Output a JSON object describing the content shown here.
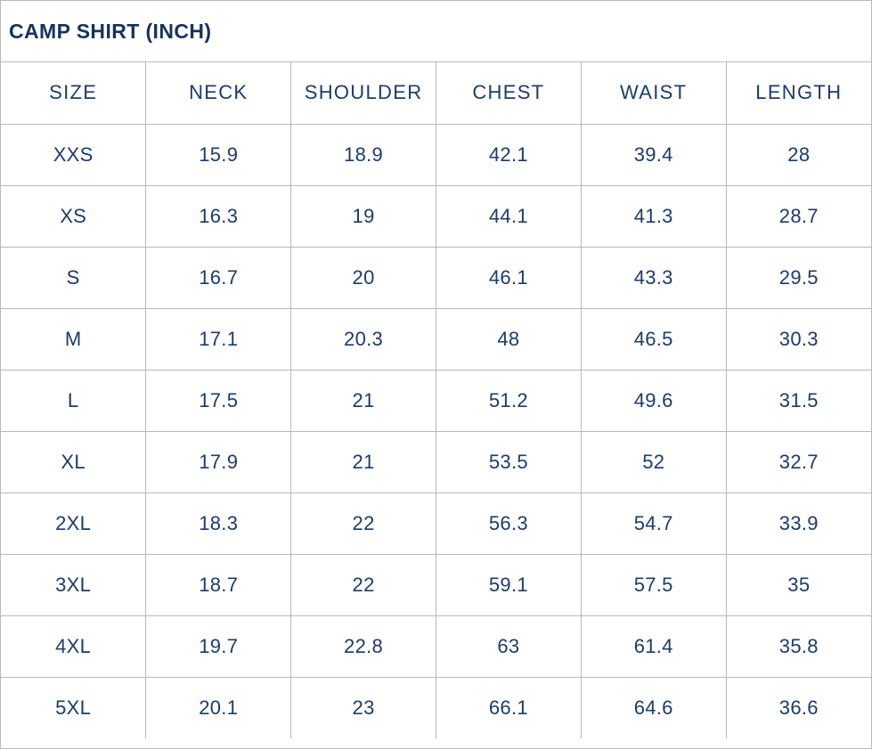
{
  "title": "CAMP SHIRT (INCH)",
  "chart_data": {
    "type": "table",
    "title": "CAMP SHIRT (INCH)",
    "columns": [
      "SIZE",
      "NECK",
      "SHOULDER",
      "CHEST",
      "WAIST",
      "LENGTH"
    ],
    "rows": [
      [
        "XXS",
        "15.9",
        "18.9",
        "42.1",
        "39.4",
        "28"
      ],
      [
        "XS",
        "16.3",
        "19",
        "44.1",
        "41.3",
        "28.7"
      ],
      [
        "S",
        "16.7",
        "20",
        "46.1",
        "43.3",
        "29.5"
      ],
      [
        "M",
        "17.1",
        "20.3",
        "48",
        "46.5",
        "30.3"
      ],
      [
        "L",
        "17.5",
        "21",
        "51.2",
        "49.6",
        "31.5"
      ],
      [
        "XL",
        "17.9",
        "21",
        "53.5",
        "52",
        "32.7"
      ],
      [
        "2XL",
        "18.3",
        "22",
        "56.3",
        "54.7",
        "33.9"
      ],
      [
        "3XL",
        "18.7",
        "22",
        "59.1",
        "57.5",
        "35"
      ],
      [
        "4XL",
        "19.7",
        "22.8",
        "63",
        "61.4",
        "35.8"
      ],
      [
        "5XL",
        "20.1",
        "23",
        "66.1",
        "64.6",
        "36.6"
      ]
    ]
  },
  "colors": {
    "cell_text": "#1d3b6c",
    "title_text": "#16335f",
    "border": "#b9b9b9",
    "background": "#ffffff"
  }
}
